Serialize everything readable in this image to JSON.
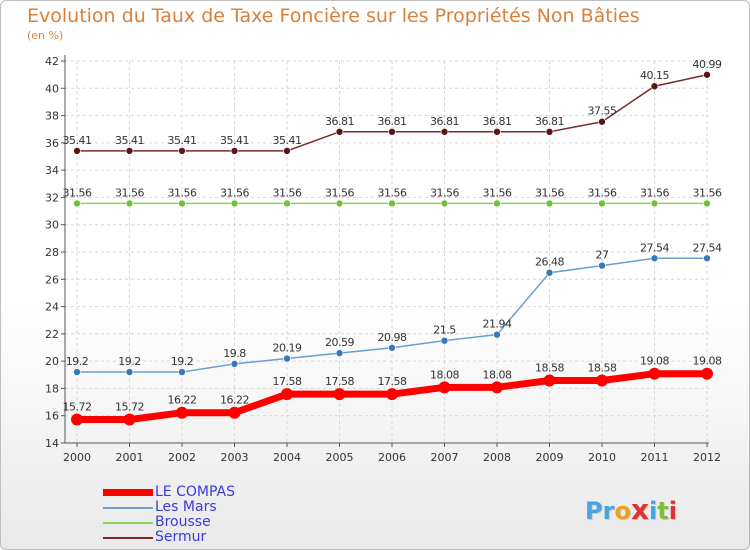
{
  "title": "Evolution du Taux de Taxe Foncière sur les Propriétés Non Bâties",
  "subtitle": "(en %)",
  "logo": {
    "text": "Proxiti",
    "letters": [
      "P",
      "r",
      "o",
      "x",
      "i",
      "t",
      "i"
    ],
    "colors": [
      "#4aa3df",
      "#4aa3df",
      "#f0a020",
      "#e03030",
      "#4aa3df",
      "#7bbf3a",
      "#e03030"
    ]
  },
  "chart_data": {
    "type": "line",
    "title": "Evolution du Taux de Taxe Foncière sur les Propriétés Non Bâties",
    "ylabel": "(en %)",
    "x": [
      "2000",
      "2001",
      "2002",
      "2003",
      "2004",
      "2005",
      "2006",
      "2007",
      "2008",
      "2009",
      "2010",
      "2011",
      "2012"
    ],
    "ylim": [
      14,
      42
    ],
    "yticks": [
      14,
      16,
      18,
      20,
      22,
      24,
      26,
      28,
      30,
      32,
      34,
      36,
      38,
      40,
      42
    ],
    "grid": true,
    "legend_position": "bottom-left",
    "series": [
      {
        "name": "LE COMPAS",
        "color": "#ff0000",
        "marker_color": "#ff0000",
        "width": 7,
        "marker": 6,
        "values": [
          15.72,
          15.72,
          16.22,
          16.22,
          17.58,
          17.58,
          17.58,
          18.08,
          18.08,
          18.58,
          18.58,
          19.08,
          19.08
        ],
        "labels": [
          "15.72",
          "15.72",
          "16.22",
          "16.22",
          "17.58",
          "17.58",
          "17.58",
          "18.08",
          "18.08",
          "18.58",
          "18.58",
          "19.08",
          "19.08"
        ]
      },
      {
        "name": "Les Mars",
        "color": "#6a9fcf",
        "marker_color": "#3a78b8",
        "width": 1.5,
        "marker": 3.5,
        "values": [
          19.2,
          19.2,
          19.2,
          19.8,
          20.19,
          20.59,
          20.98,
          21.5,
          21.94,
          26.48,
          27,
          27.54,
          27.54
        ],
        "labels": [
          "19.2",
          "19.2",
          "19.2",
          "19.8",
          "20.19",
          "20.59",
          "20.98",
          "21.5",
          "21.94",
          "26.48",
          "27",
          "27.54",
          "27.54"
        ]
      },
      {
        "name": "Brousse",
        "color": "#8fd35a",
        "marker_color": "#6fc23a",
        "width": 1.5,
        "marker": 3.5,
        "values": [
          31.56,
          31.56,
          31.56,
          31.56,
          31.56,
          31.56,
          31.56,
          31.56,
          31.56,
          31.56,
          31.56,
          31.56,
          31.56
        ],
        "labels": [
          "31.56",
          "31.56",
          "31.56",
          "31.56",
          "31.56",
          "31.56",
          "31.56",
          "31.56",
          "31.56",
          "31.56",
          "31.56",
          "31.56",
          "31.56"
        ]
      },
      {
        "name": "Sermur",
        "color": "#7a2a2a",
        "marker_color": "#5a1515",
        "width": 1.5,
        "marker": 3.5,
        "values": [
          35.41,
          35.41,
          35.41,
          35.41,
          35.41,
          36.81,
          36.81,
          36.81,
          36.81,
          36.81,
          37.55,
          40.15,
          40.99
        ],
        "labels": [
          "35.41",
          "35.41",
          "35.41",
          "35.41",
          "35.41",
          "36.81",
          "36.81",
          "36.81",
          "36.81",
          "36.81",
          "37.55",
          "40.15",
          "40.99"
        ]
      }
    ]
  }
}
